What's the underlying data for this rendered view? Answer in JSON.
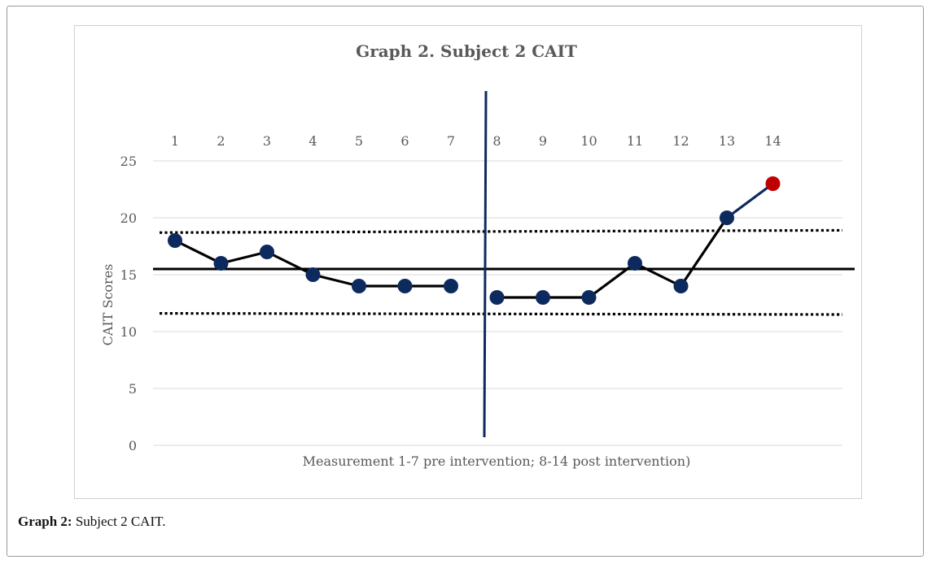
{
  "caption": {
    "label": "Graph 2:",
    "text": " Subject 2 CAIT."
  },
  "chart_data": {
    "type": "line",
    "title": "Graph 2. Subject 2 CAIT",
    "xlabel": "Measurement  1-7 pre intervention;  8-14 post intervention)",
    "ylabel": "CAIT Scores",
    "ylim": [
      0,
      25
    ],
    "yticks": [
      0,
      5,
      10,
      15,
      20,
      25
    ],
    "categories": [
      "1",
      "2",
      "3",
      "4",
      "5",
      "6",
      "7",
      "8",
      "9",
      "10",
      "11",
      "12",
      "13",
      "14"
    ],
    "x_axis_position": "top",
    "grid": "horizontal",
    "phase_line_after": 7,
    "series": [
      {
        "values": [
          18,
          16,
          17,
          15,
          14,
          14,
          14,
          null,
          null,
          null,
          null,
          null,
          null,
          null
        ],
        "color": "#000000",
        "marker": "#0d2a5e"
      },
      {
        "values": [
          null,
          null,
          null,
          null,
          null,
          null,
          null,
          13,
          13,
          13,
          16,
          14,
          20,
          null
        ],
        "color": "#000000",
        "marker": "#0d2a5e"
      },
      {
        "values": [
          null,
          null,
          null,
          null,
          null,
          null,
          null,
          null,
          null,
          null,
          null,
          null,
          20,
          23
        ],
        "color": "#0d2a5e",
        "marker": "#c00000"
      }
    ],
    "reference_lines": [
      {
        "style": "solid",
        "y_start": 15.5,
        "y_end": 15.5
      },
      {
        "style": "dotted",
        "y_start": 18.7,
        "y_end": 18.9
      },
      {
        "style": "dotted",
        "y_start": 11.6,
        "y_end": 11.5
      }
    ],
    "colors": {
      "marker": "#0d2a5e",
      "highlight": "#c00000",
      "phase_line": "#0d2a5e",
      "text": "#595959",
      "grid": "#d9d9d9"
    }
  }
}
